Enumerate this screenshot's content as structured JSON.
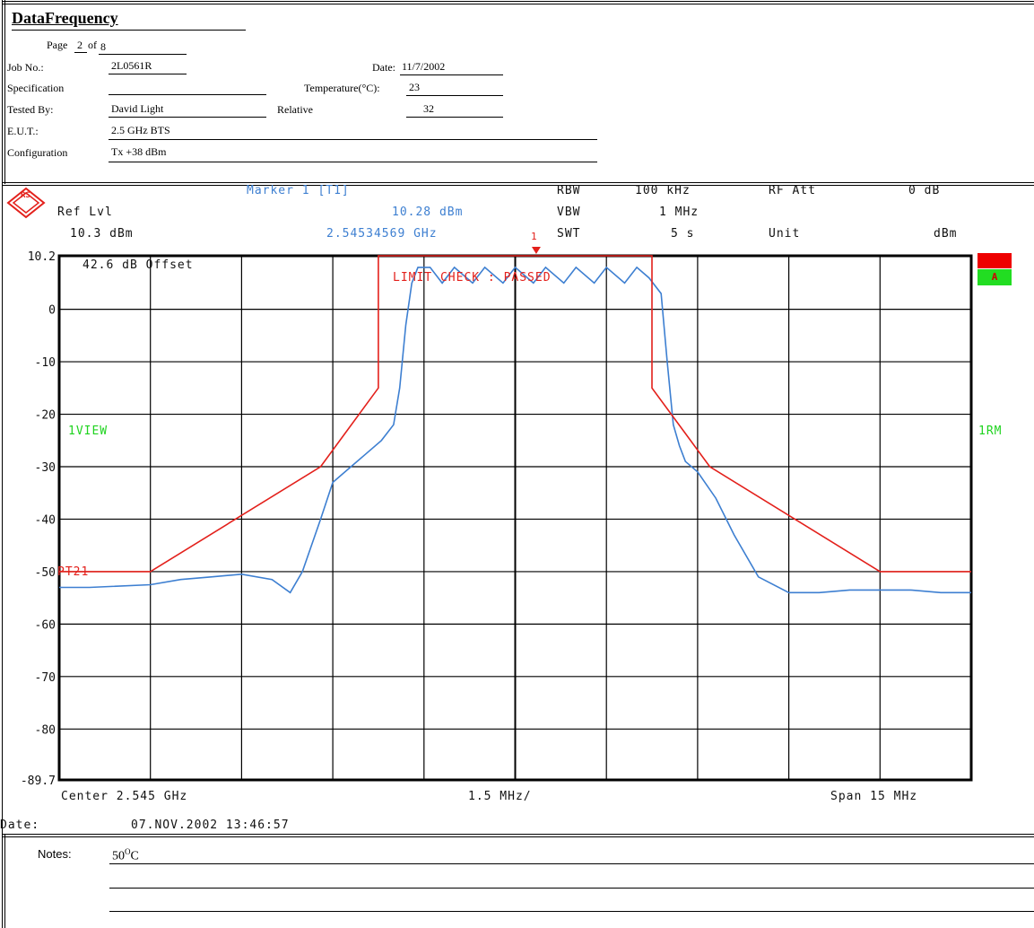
{
  "header": {
    "title": "DataFrequency",
    "page_label": "Page",
    "page_current": "2",
    "page_of": "of",
    "page_total": "8",
    "job_label": "Job No.:",
    "job_value": "2L0561R",
    "date_label": "Date:",
    "date_value": "11/7/2002",
    "spec_label": "Specification",
    "spec_value": "",
    "temp_label": "Temperature(°C):",
    "temp_value": "23",
    "tested_label": "Tested By:",
    "tested_value": "David Light",
    "relative_label": "Relative",
    "relative_value": "32",
    "eut_label": "E.U.T.:",
    "eut_value": "2.5 GHz BTS",
    "config_label": "Configuration",
    "config_value": "Tx +38 dBm"
  },
  "instrument": {
    "logo_letters": "RS",
    "marker_label": "Marker 1 [T1]",
    "ref_lvl_label": "Ref Lvl",
    "ref_lvl_value": "10.3 dBm",
    "marker_level": "10.28 dBm",
    "marker_freq": "2.54534569 GHz",
    "rbw_label": "RBW",
    "rbw_value": "100 kHz",
    "vbw_label": "VBW",
    "vbw_value": "1 MHz",
    "swt_label": "SWT",
    "swt_value": "5 s",
    "rf_att_label": "RF Att",
    "rf_att_value": "0 dB",
    "unit_label": "Unit",
    "unit_value": "dBm",
    "offset_text": "42.6 dB Offset",
    "limit_check": "LIMIT CHECK  : PASSED",
    "view_label": "1VIEW",
    "rm_label": "1RM",
    "limit_line_label": "PT21",
    "trace_badge": "A",
    "marker_number": "1",
    "center_text": "Center 2.545 GHz",
    "div_text": "1.5 MHz/",
    "span_text": "Span 15 MHz",
    "date_label": "Date:",
    "date_value": "07.NOV.2002  13:46:57"
  },
  "notes": {
    "label": "Notes:",
    "value_number": "50",
    "value_sup": "O",
    "value_unit": "C"
  },
  "colors": {
    "trace": "#3d7fd1",
    "limit": "#e3201b",
    "grid": "#000000",
    "label_green": "#1fd31f"
  },
  "chart_data": {
    "type": "line",
    "xlabel": "",
    "ylabel": "",
    "xlim": [
      2.5375,
      2.5525
    ],
    "ylim": [
      -89.7,
      10.2
    ],
    "ytick_labels": [
      "10.2",
      "0",
      "-10",
      "-20",
      "-30",
      "-40",
      "-50",
      "-60",
      "-70",
      "-80",
      "-89.7"
    ],
    "ytick_values": [
      10.2,
      0,
      -10,
      -20,
      -30,
      -40,
      -50,
      -60,
      -70,
      -80,
      -89.7
    ],
    "grid": true,
    "series": [
      {
        "name": "",
        "color": "#3d7fd1",
        "x": [
          2.5375,
          2.538,
          2.539,
          2.5395,
          2.54,
          2.5405,
          2.541,
          2.5413,
          2.5415,
          2.5418,
          2.542,
          2.5425,
          2.5428,
          2.543,
          2.5431,
          2.5432,
          2.5433,
          2.5434,
          2.5436,
          2.5438,
          2.544,
          2.5443,
          2.5445,
          2.5448,
          2.545,
          2.5453,
          2.5455,
          2.5458,
          2.546,
          2.5463,
          2.5465,
          2.5468,
          2.547,
          2.5472,
          2.5474,
          2.5475,
          2.5476,
          2.5477,
          2.5478,
          2.548,
          2.5483,
          2.5486,
          2.549,
          2.5495,
          2.55,
          2.5505,
          2.551,
          2.5515,
          2.552,
          2.5525
        ],
        "y": [
          -53,
          -53,
          -52.5,
          -51.5,
          -51,
          -50.5,
          -51.5,
          -54,
          -50,
          -40,
          -33,
          -28,
          -25,
          -22,
          -15,
          -3,
          5,
          8,
          8,
          5,
          8,
          5,
          8,
          5,
          8,
          5,
          8,
          5,
          8,
          5,
          8,
          5,
          8,
          6,
          3,
          -10,
          -22,
          -26,
          -29,
          -31,
          -36,
          -43,
          -51,
          -54,
          -54,
          -53.5,
          -53.5,
          -53.5,
          -54,
          -54
        ]
      },
      {
        "name": "PT21",
        "color": "#e3201b",
        "x": [
          2.5375,
          2.539,
          2.5418,
          2.54275,
          2.54275,
          2.54725,
          2.54725,
          2.5482,
          2.551,
          2.5525
        ],
        "y": [
          -50,
          -50,
          -30,
          -15,
          10.2,
          10.2,
          -15,
          -30,
          -50,
          -50
        ]
      }
    ],
    "marker": {
      "x": 2.54534569,
      "y": 10.28,
      "label": "1"
    }
  }
}
